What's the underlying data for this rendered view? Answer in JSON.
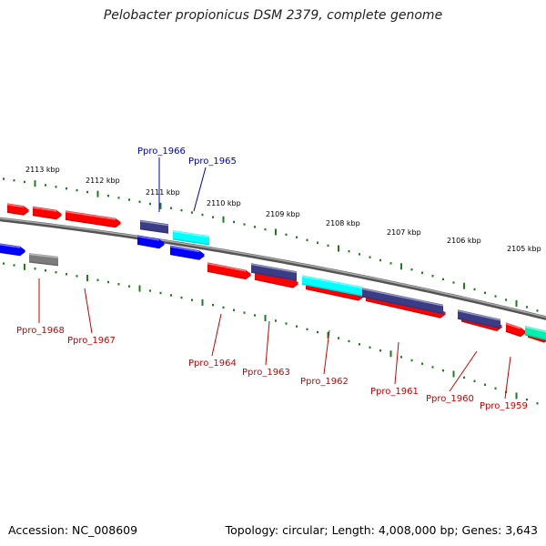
{
  "title": "Pelobacter propionicus DSM 2379, complete genome",
  "footer": {
    "accession": "Accession: NC_008609",
    "summary": "Topology: circular; Length: 4,008,000 bp; Genes: 3,643"
  },
  "colors": {
    "red": "#ff0000",
    "navy": "#3b3c86",
    "blue": "#0000ff",
    "cyan": "#00ffff",
    "teal": "#00f0b0",
    "gray": "#7c7c7c",
    "scale_green": "#1e7d1e",
    "backbone": "#888888",
    "label_red": "#cc0000",
    "label_blue": "#0000bb"
  },
  "kbp_labels": [
    "2113 kbp",
    "2112 kbp",
    "2111 kbp",
    "2110 kbp",
    "2109 kbp",
    "2108 kbp",
    "2107 kbp",
    "2106 kbp",
    "2105 kbp"
  ],
  "gene_labels": [
    {
      "text": "Ppro_1966",
      "strand": "forward"
    },
    {
      "text": "Ppro_1965",
      "strand": "forward"
    },
    {
      "text": "Ppro_1968",
      "strand": "reverse"
    },
    {
      "text": "Ppro_1967",
      "strand": "reverse"
    },
    {
      "text": "Ppro_1964",
      "strand": "reverse"
    },
    {
      "text": "Ppro_1963",
      "strand": "reverse"
    },
    {
      "text": "Ppro_1962",
      "strand": "reverse"
    },
    {
      "text": "Ppro_1961",
      "strand": "reverse"
    },
    {
      "text": "Ppro_1960",
      "strand": "reverse"
    },
    {
      "text": "Ppro_1959",
      "strand": "reverse"
    }
  ]
}
